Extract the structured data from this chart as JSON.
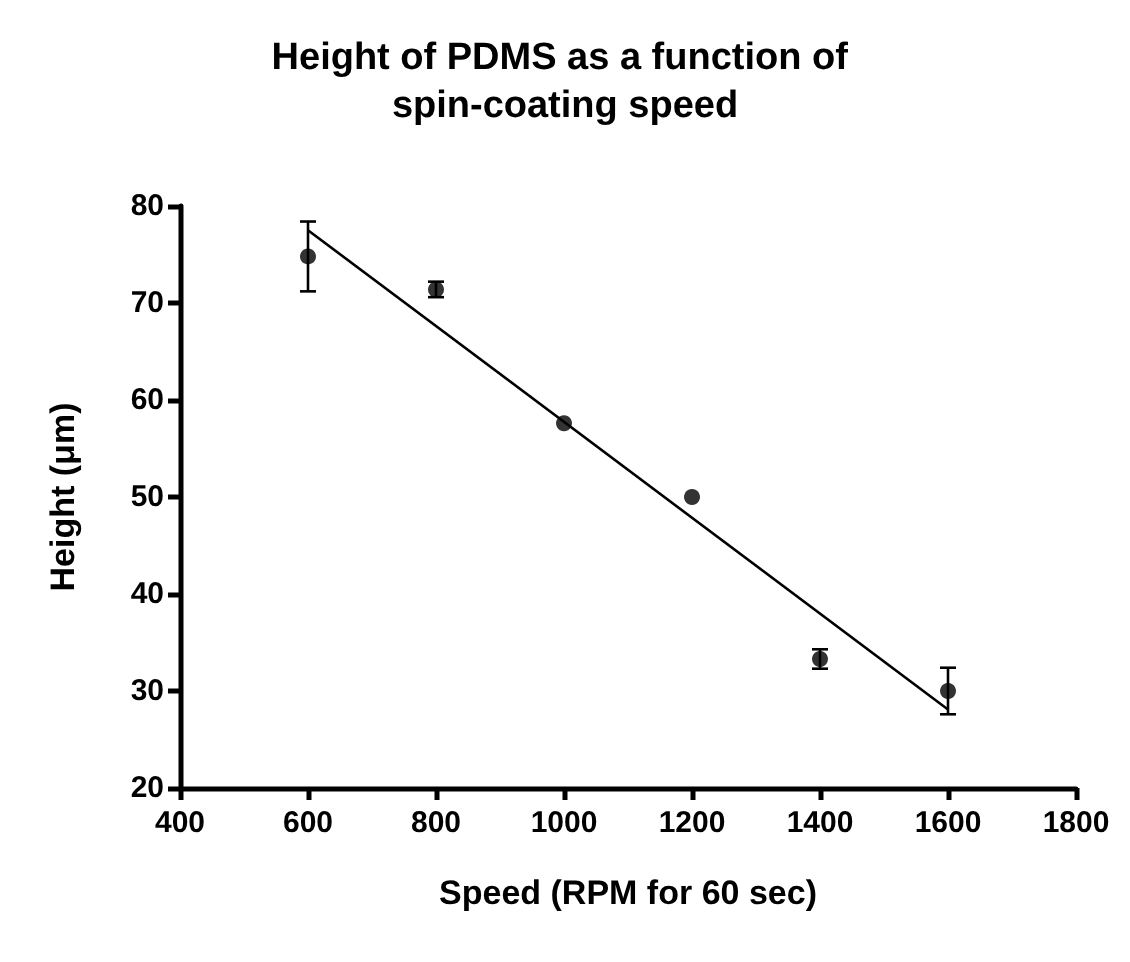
{
  "chart_data": {
    "type": "scatter",
    "title": "Height of PDMS as a function of spin-coating speed",
    "xlabel": "Speed (RPM for 60 sec)",
    "ylabel": "Height (μm)",
    "xlim": [
      400,
      1800
    ],
    "xticks": [
      400,
      600,
      800,
      1000,
      1200,
      1400,
      1600,
      1800
    ],
    "ylim": [
      20,
      80
    ],
    "yticks": [
      20,
      30,
      40,
      50,
      60,
      70,
      80
    ],
    "grid": false,
    "marker": "circle",
    "series": [
      {
        "color": "#000000",
        "x": [
          600,
          800,
          1000,
          1200,
          1400,
          1600
        ],
        "values": [
          74.8,
          71.4,
          57.6,
          50.0,
          33.3,
          30.0
        ],
        "errors": [
          [
            71.2,
            78.4
          ],
          [
            70.6,
            72.2
          ],
          null,
          null,
          [
            32.3,
            34.3
          ],
          [
            27.6,
            32.4
          ]
        ]
      },
      {
        "type": "line",
        "color": "#000000",
        "x": [
          600,
          1600
        ],
        "values": [
          77.5,
          28.1
        ],
        "marker": "none",
        "line_style": "solid"
      }
    ]
  }
}
